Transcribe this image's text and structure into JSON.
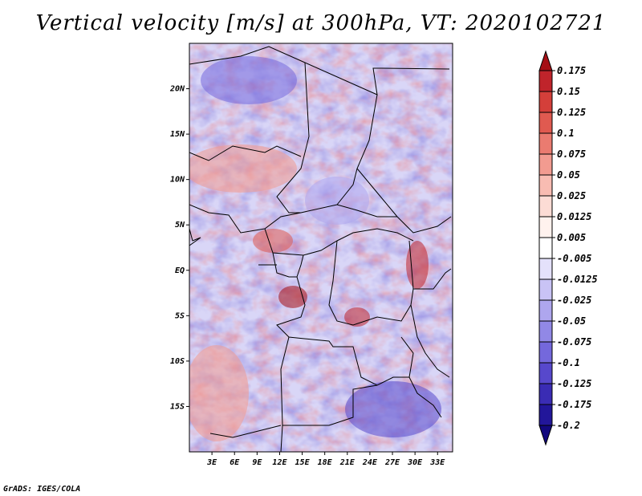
{
  "chart_data": {
    "type": "heatmap",
    "title": "Vertical velocity [m/s] at 300hPa, VT: 2020102721",
    "variable": "Vertical velocity",
    "units": "m/s",
    "level": "300hPa",
    "valid_time": "2020102721",
    "xlabel": "",
    "ylabel": "",
    "xlim": [
      0,
      35
    ],
    "ylim": [
      -20,
      25
    ],
    "x_ticks": [
      3,
      6,
      9,
      12,
      15,
      18,
      21,
      24,
      27,
      30,
      33
    ],
    "x_tick_labels": [
      "3E",
      "6E",
      "9E",
      "12E",
      "15E",
      "18E",
      "21E",
      "24E",
      "27E",
      "30E",
      "33E"
    ],
    "y_ticks": [
      20,
      15,
      10,
      5,
      0,
      -5,
      -10,
      -15
    ],
    "y_tick_labels": [
      "20N",
      "15N",
      "10N",
      "5N",
      "EQ",
      "5S",
      "10S",
      "15S"
    ],
    "colorbar": {
      "levels": [
        "0.175",
        "0.15",
        "0.125",
        "0.1",
        "0.075",
        "0.05",
        "0.025",
        "0.0125",
        "0.005",
        "-0.005",
        "-0.0125",
        "-0.025",
        "-0.05",
        "-0.075",
        "-0.1",
        "-0.125",
        "-0.175",
        "-0.2"
      ],
      "colors": [
        "#a50f15",
        "#c0242b",
        "#d43f3a",
        "#e05a50",
        "#ea7b70",
        "#f29b90",
        "#f8bcb2",
        "#fcdcd5",
        "#fff2ee",
        "#ffffff",
        "#e4e1fb",
        "#c9c3f5",
        "#aea6ee",
        "#9188e6",
        "#7468dc",
        "#5748cc",
        "#3a2cb4",
        "#22169a",
        "#12087e"
      ]
    },
    "grid": false,
    "legend": "right"
  },
  "credit": "GrADS: IGES/COLA"
}
